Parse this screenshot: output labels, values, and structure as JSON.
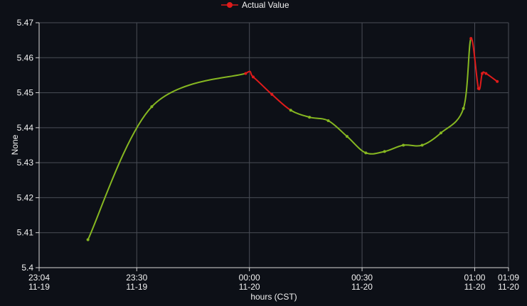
{
  "chart_data": {
    "type": "line",
    "title": "",
    "xlabel": "hours (CST)",
    "ylabel": "None",
    "legend": {
      "label": "Actual Value",
      "position": "top-center"
    },
    "ylim": [
      5.4,
      5.47
    ],
    "y_ticks": [
      "5.4",
      "5.41",
      "5.42",
      "5.43",
      "5.44",
      "5.45",
      "5.46",
      "5.47"
    ],
    "x_ticks": [
      {
        "time": "23:04",
        "date": "11-19"
      },
      {
        "time": "23:30",
        "date": "11-19"
      },
      {
        "time": "00:00",
        "date": "11-20"
      },
      {
        "time": "00:30",
        "date": "11-20"
      },
      {
        "time": "01:00",
        "date": "11-20"
      },
      {
        "time": "01:09",
        "date": "11-20"
      }
    ],
    "grid": true,
    "colors": {
      "background": "#0d1017",
      "grid": "#4a4e57",
      "axis": "#d9d9d9",
      "text": "#f2f2f2",
      "normal": "#86b721",
      "anomaly": "#e01b1b"
    },
    "series": [
      {
        "name": "Actual Value",
        "points": [
          {
            "x": "23:17",
            "y": 5.408,
            "anomaly": false
          },
          {
            "x": "23:34",
            "y": 5.446,
            "anomaly": false
          },
          {
            "x": "23:59",
            "y": 5.4555,
            "anomaly": true
          },
          {
            "x": "00:01",
            "y": 5.4545,
            "anomaly": true
          },
          {
            "x": "00:06",
            "y": 5.4495,
            "anomaly": true
          },
          {
            "x": "00:11",
            "y": 5.445,
            "anomaly": false
          },
          {
            "x": "00:16",
            "y": 5.443,
            "anomaly": false
          },
          {
            "x": "00:21",
            "y": 5.442,
            "anomaly": false
          },
          {
            "x": "00:26",
            "y": 5.4375,
            "anomaly": false
          },
          {
            "x": "00:31",
            "y": 5.4328,
            "anomaly": false
          },
          {
            "x": "00:36",
            "y": 5.4332,
            "anomaly": false
          },
          {
            "x": "00:41",
            "y": 5.435,
            "anomaly": false
          },
          {
            "x": "00:46",
            "y": 5.435,
            "anomaly": false
          },
          {
            "x": "00:51",
            "y": 5.4385,
            "anomaly": false
          },
          {
            "x": "00:57",
            "y": 5.4455,
            "anomaly": false
          },
          {
            "x": "00:59",
            "y": 5.4655,
            "anomaly": true
          },
          {
            "x": "01:01",
            "y": 5.4512,
            "anomaly": true
          },
          {
            "x": "01:02",
            "y": 5.4555,
            "anomaly": true
          },
          {
            "x": "01:03",
            "y": 5.4555,
            "anomaly": true
          },
          {
            "x": "01:06",
            "y": 5.4532,
            "anomaly": true
          }
        ]
      }
    ]
  }
}
